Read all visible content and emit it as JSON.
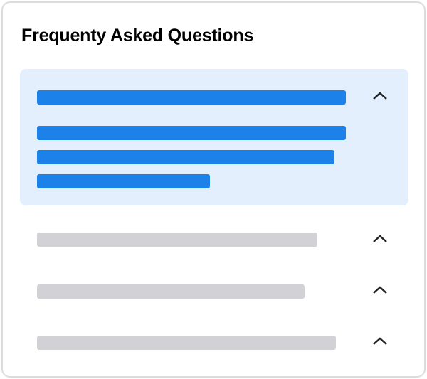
{
  "header": {
    "title": "Frequenty Asked Questions"
  },
  "colors": {
    "accent": "#1c82ea",
    "panel": "#e3effd",
    "placeholder": "#d1d1d6"
  },
  "faq": [
    {
      "expanded": true,
      "icon": "chevron-up-icon"
    },
    {
      "expanded": false,
      "icon": "chevron-up-icon"
    },
    {
      "expanded": false,
      "icon": "chevron-up-icon"
    },
    {
      "expanded": false,
      "icon": "chevron-up-icon"
    }
  ]
}
